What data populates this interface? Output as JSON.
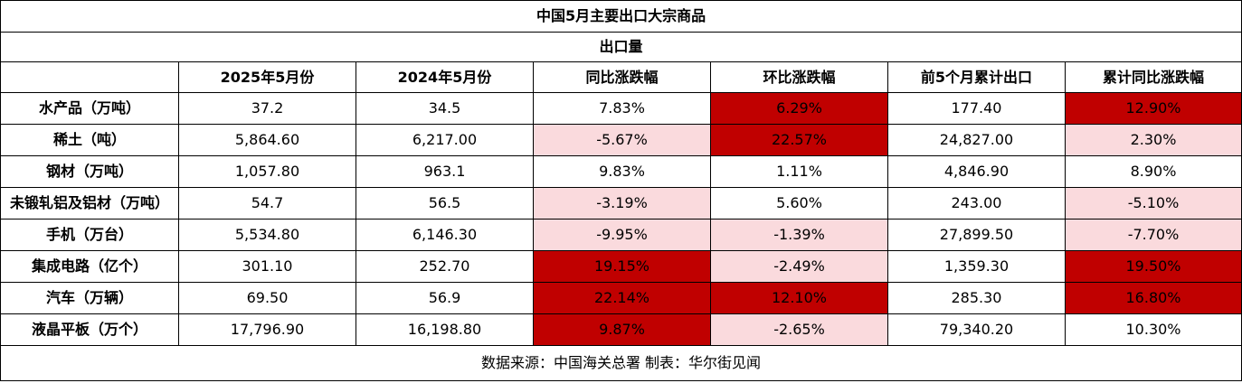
{
  "title": "中国5月主要出口大宗商品",
  "unit_label": "出口量",
  "headers": [
    "",
    "2025年5月份",
    "2024年5月份",
    "同比涨跌幅",
    "环比涨跌幅",
    "前5个月累计出口",
    "累计同比涨跌幅"
  ],
  "rows": [
    {
      "name": "水产品（万吨）",
      "may2025": "37.2",
      "may2024": "34.5",
      "yoy": "7.83%",
      "mom": "6.29%",
      "ytd": "177.40",
      "ytd_yoy": "12.90%"
    },
    {
      "name": "稀土（吨）",
      "may2025": "5,864.60",
      "may2024": "6,217.00",
      "yoy": "-5.67%",
      "mom": "22.57%",
      "ytd": "24,827.00",
      "ytd_yoy": "2.30%"
    },
    {
      "name": "钢材（万吨）",
      "may2025": "1,057.80",
      "may2024": "963.1",
      "yoy": "9.83%",
      "mom": "1.11%",
      "ytd": "4,846.90",
      "ytd_yoy": "8.90%"
    },
    {
      "name": "未锻轧铝及铝材（万吨）",
      "may2025": "54.7",
      "may2024": "56.5",
      "yoy": "-3.19%",
      "mom": "5.60%",
      "ytd": "243.00",
      "ytd_yoy": "-5.10%"
    },
    {
      "name": "手机（万台）",
      "may2025": "5,534.80",
      "may2024": "6,146.30",
      "yoy": "-9.95%",
      "mom": "-1.39%",
      "ytd": "27,899.50",
      "ytd_yoy": "-7.70%"
    },
    {
      "name": "集成电路（亿个）",
      "may2025": "301.10",
      "may2024": "252.70",
      "yoy": "19.15%",
      "mom": "-2.49%",
      "ytd": "1,359.30",
      "ytd_yoy": "19.50%"
    },
    {
      "name": "汽车（万辆）",
      "may2025": "69.50",
      "may2024": "56.9",
      "yoy": "22.14%",
      "mom": "12.10%",
      "ytd": "285.30",
      "ytd_yoy": "16.80%"
    },
    {
      "name": "液晶平板（万个）",
      "may2025": "17,796.90",
      "may2024": "16,198.80",
      "yoy": "9.87%",
      "mom": "-2.65%",
      "ytd": "79,340.20",
      "ytd_yoy": "10.30%"
    }
  ],
  "source": "数据来源：中国海关总署 制表：华尔街见闻",
  "colors": {
    "strong_highlight": "#c00000",
    "soft_highlight": "#fadadd"
  }
}
